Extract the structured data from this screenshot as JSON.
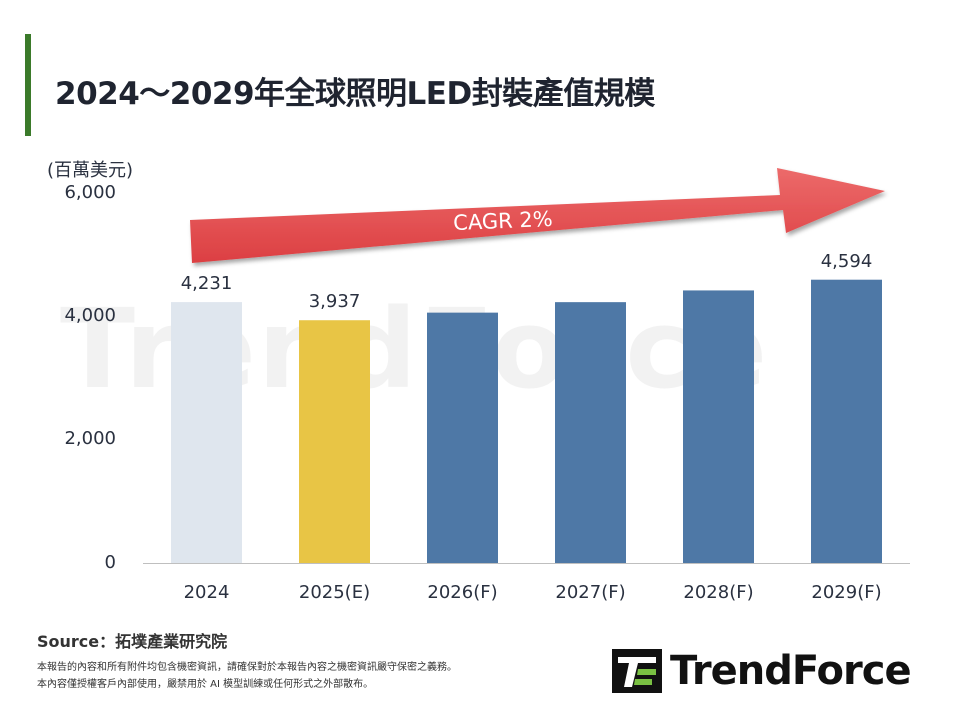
{
  "title": "2024～2029年全球照明LED封裝產值規模",
  "chart_data": {
    "type": "bar",
    "title": "2024～2029年全球照明LED封裝產值規模",
    "ylabel": "(百萬美元)",
    "xlabel": "",
    "categories": [
      "2024",
      "2025(E)",
      "2026(F)",
      "2027(F)",
      "2028(F)",
      "2029(F)"
    ],
    "values": [
      4231,
      3937,
      4060,
      4230,
      4420,
      4594
    ],
    "data_labels": [
      "4,231",
      "3,937",
      "",
      "",
      "",
      "4,594"
    ],
    "bar_colors": [
      "#dfe6ee",
      "#e8c545",
      "#4e78a6",
      "#4e78a6",
      "#4e78a6",
      "#4e78a6"
    ],
    "ylim": [
      0,
      6000
    ],
    "yticks": [
      "0",
      "2,000",
      "4,000",
      "6,000"
    ],
    "ytick_values": [
      0,
      2000,
      4000,
      6000
    ],
    "grid": false,
    "annotation": {
      "text": "CAGR 2%",
      "shape": "arrow",
      "color": "#e04848"
    }
  },
  "footer": {
    "source": "Source：拓墣產業研究院",
    "disclaimer_1": "本報告的內容和所有附件均包含機密資訊，請確保對於本報告內容之機密資訊嚴守保密之義務。",
    "disclaimer_2": "本內容僅授權客戶內部使用，嚴禁用於 AI 模型訓練或任何形式之外部散布。"
  },
  "logo": {
    "text": "TrendForce"
  },
  "watermark": "TrendForce"
}
